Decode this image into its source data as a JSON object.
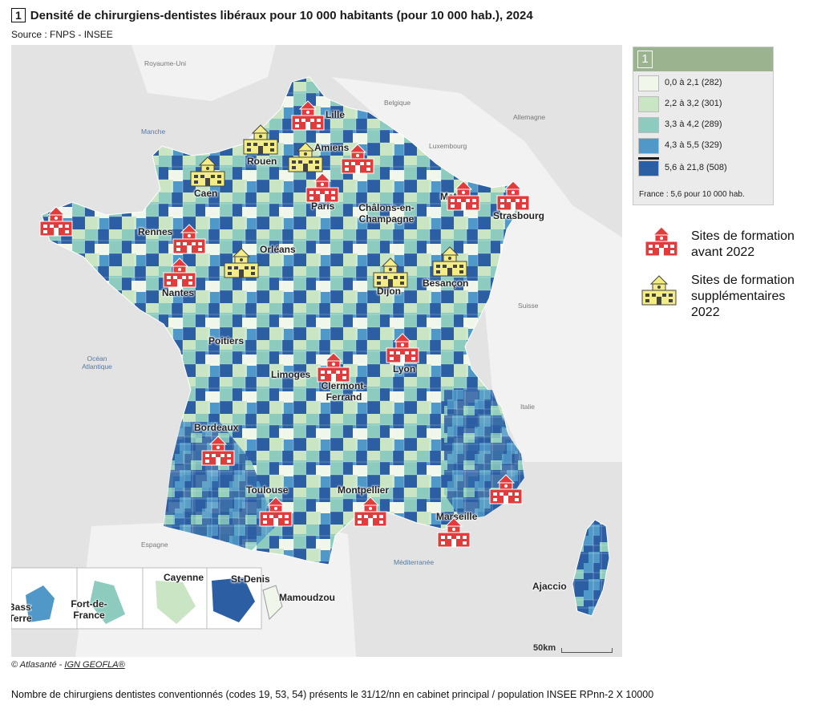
{
  "title": {
    "number": "1",
    "text": "Densité de chirurgiens-dentistes libéraux pour 10 000 habitants (pour 10 000 hab.), 2024"
  },
  "source": "Source : FNPS - INSEE",
  "map": {
    "countries": {
      "uk": "Royaume-Uni",
      "belgium": "Belgique",
      "germany": "Allemagne",
      "luxembourg": "Luxembourg",
      "switzerland": "Suisse",
      "italy": "Italie",
      "spain": "Espagne"
    },
    "seas": {
      "manche": "Manche",
      "ocean": "Océan Atlantique",
      "med": "Méditerranée"
    },
    "cities": {
      "lille": "Lille",
      "amiens": "Amiens",
      "rouen": "Rouen",
      "caen": "Caen",
      "paris": "Paris",
      "metz": "Metz",
      "strasbourg": "Strasbourg",
      "chalons": "Châlons-en-Champagne",
      "rennes": "Rennes",
      "orleans": "Orléans",
      "nantes": "Nantes",
      "dijon": "Dijon",
      "besancon": "Besançon",
      "poitiers": "Poitiers",
      "limoges": "Limoges",
      "clermont": "Clermont-Ferrand",
      "lyon": "Lyon",
      "bordeaux": "Bordeaux",
      "toulouse": "Toulouse",
      "montpellier": "Montpellier",
      "marseille": "Marseille",
      "ajaccio": "Ajaccio",
      "cayenne": "Cayenne",
      "saint_denis": "St-Denis",
      "mamoudzou": "Mamoudzou",
      "fort_de_france": "Fort-de-France",
      "basse_terre": "Basse-Terre"
    },
    "scale": "50km",
    "icons": {
      "red": {
        "color": "#e23b3b",
        "name": "school-red-icon"
      },
      "yellow": {
        "color": "#f4ec84",
        "name": "school-yellow-icon"
      }
    }
  },
  "legend": {
    "number": "1",
    "classes": [
      {
        "label": "0,0 à 2,1 (282)",
        "color": "#f0f7ea"
      },
      {
        "label": "2,2 à 3,2 (301)",
        "color": "#c9e5c3"
      },
      {
        "label": "3,3 à 4,2 (289)",
        "color": "#8ccbbd"
      },
      {
        "label": "4,3 à 5,5 (329)",
        "color": "#4f98c8"
      },
      {
        "label": "5,6 à 21,8 (508)",
        "color": "#2b5ea3"
      }
    ],
    "france": "France : 5,6 pour 10 000 hab."
  },
  "key": {
    "before": "Sites de formation avant 2022",
    "after": "Sites de formation supplémentaires 2022"
  },
  "credit": {
    "prefix": "© Atlasanté - ",
    "link": "IGN GEOFLA®"
  },
  "footnote": "Nombre de chirurgiens dentistes conventionnés (codes 19, 53, 54) présents le 31/12/nn en cabinet principal / population INSEE RPnn-2 X 10000"
}
